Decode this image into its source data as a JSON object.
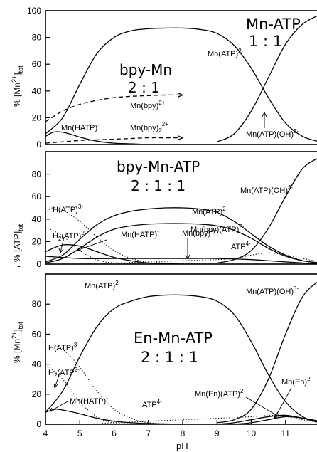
{
  "chart_data": [
    {
      "type": "line",
      "title": "Mn-ATP",
      "subtitle": "1 : 1",
      "ylabel": "% [Mn2+]tot",
      "xlim": [
        4,
        12
      ],
      "ylim": [
        0,
        100
      ],
      "yticks": [
        0,
        20,
        40,
        60,
        80,
        100
      ],
      "series": [
        {
          "name": "Mn(HATP)-",
          "style": "solid",
          "x": [
            4,
            4.2,
            4.4,
            4.7,
            5.0,
            5.5,
            6.0,
            6.5,
            7.0
          ],
          "y": [
            6,
            9,
            9.5,
            8,
            5.5,
            2.5,
            1,
            0.5,
            0
          ]
        },
        {
          "name": "Mn(ATP)2-",
          "style": "solid",
          "x": [
            4,
            4.5,
            5,
            5.5,
            6,
            6.5,
            7,
            7.5,
            8,
            8.5,
            9,
            9.5,
            10,
            10.5,
            11,
            11.5,
            12
          ],
          "y": [
            8,
            20,
            45,
            68,
            80,
            85,
            86.5,
            87,
            87,
            86,
            83,
            74,
            57,
            35,
            16,
            6,
            2
          ]
        },
        {
          "name": "Mn(ATP)(OH)3-",
          "style": "solid",
          "x": [
            9,
            9.5,
            10,
            10.5,
            11,
            11.5,
            12
          ],
          "y": [
            2,
            8,
            25,
            50,
            75,
            90,
            97
          ]
        }
      ]
    },
    {
      "type": "line",
      "title": "bpy-Mn",
      "subtitle": "2 : 1",
      "series": [
        {
          "name": "Mn(bpy)2+",
          "style": "dashed",
          "x": [
            4,
            4.5,
            5,
            5.5,
            6,
            6.5,
            7,
            7.5,
            8
          ],
          "y": [
            17,
            25,
            30,
            33,
            35,
            36,
            36.5,
            37,
            37
          ]
        },
        {
          "name": "Mn(bpy)22+",
          "style": "dashed",
          "x": [
            4,
            4.5,
            5,
            5.5,
            6,
            6.5,
            7,
            7.5,
            8
          ],
          "y": [
            1,
            2,
            3,
            3.5,
            4,
            4.5,
            5,
            5,
            5
          ]
        }
      ]
    },
    {
      "type": "line",
      "title": "bpy-Mn-ATP",
      "subtitle": "2 : 1 : 1",
      "ylabel": "% [ATP]tot",
      "xlim": [
        4,
        12
      ],
      "ylim": [
        0,
        100
      ],
      "yticks": [
        0,
        20,
        40,
        60,
        80
      ],
      "series": [
        {
          "name": "H(ATP)3-",
          "style": "dotted",
          "x": [
            4,
            4.2,
            4.5,
            5,
            5.5,
            6,
            6.5,
            7,
            7.5,
            8,
            9
          ],
          "y": [
            45,
            50,
            48,
            38,
            24,
            12,
            5,
            2,
            1,
            0.5,
            0
          ]
        },
        {
          "name": "H2(ATP)2-",
          "style": "dotted",
          "x": [
            4,
            4.5,
            5,
            5.5,
            6,
            7
          ],
          "y": [
            33,
            25,
            12,
            4,
            1,
            0
          ]
        },
        {
          "name": "Mn(HATP)-",
          "style": "solid",
          "x": [
            4,
            4.5,
            5,
            5.5,
            6,
            6.5,
            7,
            8
          ],
          "y": [
            11,
            17,
            16,
            11,
            6,
            3,
            1,
            0
          ]
        },
        {
          "name": "Mn(ATP)2-",
          "style": "solid",
          "x": [
            4,
            4.5,
            5,
            5.5,
            6,
            6.5,
            7,
            7.5,
            8,
            8.5,
            9,
            9.5,
            10,
            10.5,
            11,
            11.5,
            12
          ],
          "y": [
            2,
            8,
            22,
            35,
            43,
            47,
            49,
            50,
            50,
            49,
            46,
            38,
            27,
            16,
            8,
            3,
            1
          ]
        },
        {
          "name": "Mn(bpy)(ATP)2-",
          "style": "solid",
          "x": [
            4,
            4.5,
            5,
            5.5,
            6,
            6.5,
            7,
            7.5,
            8,
            8.5,
            9,
            9.5,
            10,
            10.5,
            11,
            11.5,
            12
          ],
          "y": [
            1,
            5,
            14,
            24,
            31,
            34,
            35.5,
            36,
            36,
            35.5,
            34,
            30,
            23,
            14,
            7,
            3,
            1
          ]
        },
        {
          "name": "Mn(bpy)2+",
          "style": "solid",
          "x": [
            4,
            5,
            6,
            7,
            8,
            9,
            10,
            10.5,
            11,
            11.5,
            12
          ],
          "y": [
            7,
            5,
            5,
            5,
            5,
            5,
            4,
            3,
            2,
            1,
            0
          ]
        },
        {
          "name": "ATP4-",
          "style": "dotted",
          "x": [
            4,
            5,
            6,
            7,
            8,
            9,
            9.5,
            10,
            10.5,
            11,
            11.5,
            12
          ],
          "y": [
            0,
            0,
            1,
            2,
            3,
            4,
            5,
            8,
            10,
            8,
            5,
            2
          ]
        },
        {
          "name": "Mn(ATP)(OH)3-",
          "style": "solid",
          "x": [
            9,
            9.5,
            10,
            10.5,
            11,
            11.5,
            12
          ],
          "y": [
            1,
            4,
            12,
            32,
            60,
            85,
            95
          ]
        }
      ]
    },
    {
      "type": "line",
      "title": "En-Mn-ATP",
      "subtitle": "2 : 1 : 1",
      "xlabel": "pH",
      "ylabel": "% [Mn2+]tot",
      "xlim": [
        4,
        12
      ],
      "ylim": [
        0,
        100
      ],
      "xticks": [
        4,
        5,
        6,
        7,
        8,
        9,
        10,
        11
      ],
      "yticks": [
        0,
        20,
        40,
        60,
        80
      ],
      "series": [
        {
          "name": "H(ATP)3-",
          "style": "dotted",
          "x": [
            4,
            4.3,
            4.6,
            5,
            5.5,
            6,
            6.5,
            7,
            8
          ],
          "y": [
            48,
            52,
            48,
            38,
            22,
            10,
            4,
            1,
            0
          ]
        },
        {
          "name": "H2(ATP)2-",
          "style": "dotted",
          "x": [
            4,
            4.5,
            5,
            5.5,
            6,
            7
          ],
          "y": [
            40,
            30,
            15,
            5,
            1,
            0
          ]
        },
        {
          "name": "Mn(HATP)-",
          "style": "solid",
          "x": [
            4,
            4.3,
            4.6,
            5,
            5.5,
            6,
            6.5,
            7,
            8
          ],
          "y": [
            8,
            10,
            9,
            7,
            4,
            2,
            1,
            0.5,
            0
          ]
        },
        {
          "name": "Mn(ATP)2-",
          "style": "solid",
          "x": [
            4,
            4.5,
            5,
            5.5,
            6,
            6.5,
            7,
            7.5,
            8,
            8.5,
            9,
            9.5,
            10,
            10.5,
            11,
            11.5,
            12
          ],
          "y": [
            8,
            22,
            45,
            65,
            77,
            82,
            85,
            86,
            86,
            85,
            82,
            73,
            55,
            33,
            15,
            5,
            1
          ]
        },
        {
          "name": "ATP4-",
          "style": "dotted",
          "x": [
            4,
            5,
            6,
            7,
            8,
            9,
            10,
            10.5,
            11,
            11.5,
            12
          ],
          "y": [
            0,
            0,
            1,
            2,
            3,
            4,
            5,
            6,
            5,
            3,
            1
          ]
        },
        {
          "name": "Mn(En)(ATP)2-",
          "style": "solid",
          "x": [
            9,
            9.5,
            10,
            10.5,
            11,
            11.5,
            12
          ],
          "y": [
            0,
            1,
            3,
            5,
            6,
            4,
            1
          ]
        },
        {
          "name": "Mn(En)2+",
          "style": "solid",
          "x": [
            9.5,
            10,
            10.5,
            11,
            11.5,
            12
          ],
          "y": [
            0,
            1,
            3,
            5,
            4,
            2
          ]
        },
        {
          "name": "Mn(ATP)(OH)3-",
          "style": "solid",
          "x": [
            9,
            9.5,
            10,
            10.5,
            11,
            11.5,
            12
          ],
          "y": [
            1,
            3,
            10,
            30,
            60,
            85,
            96
          ]
        }
      ]
    }
  ],
  "labels": {
    "panel1": {
      "title": "Mn-ATP",
      "ratio": "1 : 1",
      "sub_title": "bpy-Mn",
      "sub_ratio": "2 : 1",
      "mnatp": "Mn(ATP)",
      "mnatp_charge": "2-",
      "mnbpy": "Mn(bpy)",
      "mnbpy_charge": "2+",
      "mnbpy2": "Mn(bpy)",
      "mnbpy2_sub": "2",
      "mnbpy2_charge": "2+",
      "mnhatp": "Mn(HATP)",
      "mnhatp_charge": "-",
      "mnatpoh": "Mn(ATP)(OH)",
      "mnatpoh_charge": "3-"
    },
    "panel2": {
      "title": "bpy-Mn-ATP",
      "ratio": "2 : 1 : 1",
      "hatp": "H(ATP)",
      "hatp_charge": "3-",
      "h2atp": "H",
      "h2atp_sub": "2",
      "h2atp_rest": "(ATP)",
      "h2atp_charge": "2-",
      "mnatp": "Mn(ATP)",
      "mnatp_charge": "2-",
      "mnbpyatp": "Mn(bpy)(ATP)",
      "mnbpyatp_charge": "2-",
      "mnatpoh": "Mn(ATP)(OH)",
      "mnatpoh_charge": "3-",
      "mnhatp": "Mn(HATP)",
      "mnhatp_charge": "-",
      "mnbpy": "Mn(bpy)",
      "mnbpy_charge": "2+",
      "atp4": "ATP",
      "atp4_charge": "4-"
    },
    "panel3": {
      "title": "En-Mn-ATP",
      "ratio": "2 : 1 : 1",
      "mnatp": "Mn(ATP)",
      "mnatp_charge": "2-",
      "mnatpoh": "Mn(ATP)(OH)",
      "mnatpoh_charge": "3-",
      "hatp": "H(ATP)",
      "hatp_charge": "3-",
      "h2atp": "H",
      "h2atp_sub": "2",
      "h2atp_rest": "(ATP",
      "h2atp_charge": "2-",
      "mnhatp": "Mn(HATP)",
      "mnhatp_charge": "-",
      "atp4": "ATP",
      "atp4_charge": "4-",
      "mnenatp": "Mn(En)(ATP)",
      "mnenatp_charge": "2-",
      "mnen": "Mn(En)",
      "mnen_charge": "2"
    },
    "axes": {
      "ylabel_top": "% [Mn",
      "ylabel_top_sup": "2+",
      "ylabel_top_sub": "tot",
      "ylabel_mid": "% [ATP]",
      "ylabel_mid_sub": "tot",
      "ylabel_bot": "% [Mn",
      "ylabel_bot_sup": "2+",
      "ylabel_bot_sub": "tot",
      "dash": "-",
      "xlabel": "pH"
    }
  }
}
